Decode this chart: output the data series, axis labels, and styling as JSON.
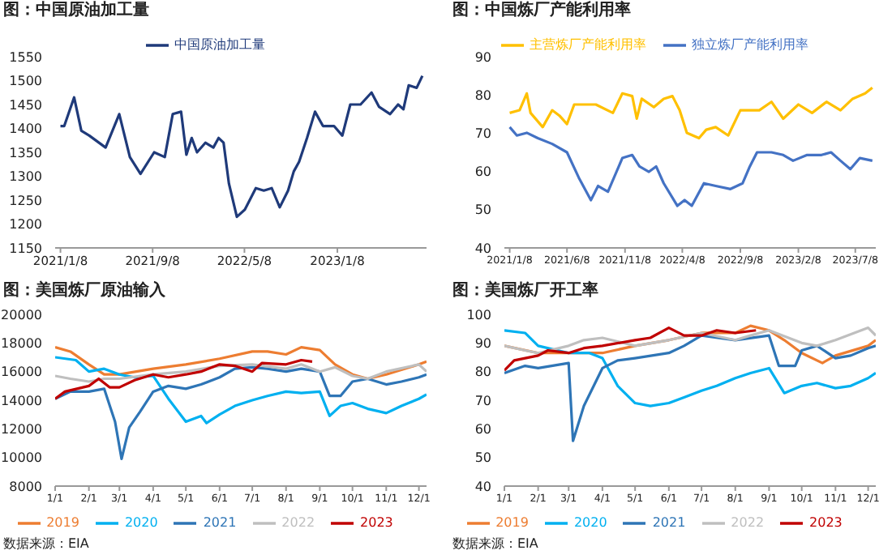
{
  "chart_data": [
    {
      "type": "line",
      "title": "图：中国原油加工量",
      "legend": "top",
      "marker": "none",
      "line_style": "solid",
      "xlim": [
        "2020-12-25",
        "2023-08-31"
      ],
      "xticks": [
        {
          "value": "2021-01-08",
          "label": "2021/1/8"
        },
        {
          "value": "2021-09-08",
          "label": "2021/9/8"
        },
        {
          "value": "2022-05-08",
          "label": "2022/5/8"
        },
        {
          "value": "2023-01-08",
          "label": "2023/1/8"
        }
      ],
      "ylim": [
        1150,
        1550
      ],
      "yticks": [
        1150,
        1200,
        1250,
        1300,
        1350,
        1400,
        1450,
        1500,
        1550
      ],
      "series": [
        {
          "name": "中国原油加工量",
          "color": "#1f3a7a",
          "x": [
            "2021-01-08",
            "2021-01-18",
            "2021-02-13",
            "2021-03-04",
            "2021-03-25",
            "2021-05-07",
            "2021-06-12",
            "2021-07-10",
            "2021-08-07",
            "2021-09-12",
            "2021-10-10",
            "2021-10-31",
            "2021-11-22",
            "2021-12-06",
            "2021-12-20",
            "2022-01-03",
            "2022-01-25",
            "2022-02-15",
            "2022-03-01",
            "2022-03-14",
            "2022-03-28",
            "2022-04-18",
            "2022-05-09",
            "2022-06-07",
            "2022-06-28",
            "2022-07-19",
            "2022-08-09",
            "2022-08-31",
            "2022-09-15",
            "2022-09-29",
            "2022-10-20",
            "2022-11-10",
            "2022-12-01",
            "2022-12-30",
            "2023-01-21",
            "2023-02-11",
            "2023-03-10",
            "2023-04-08",
            "2023-04-28",
            "2023-05-27",
            "2023-06-17",
            "2023-07-01",
            "2023-07-15",
            "2023-08-05",
            "2023-08-20"
          ],
          "values": [
            1405,
            1405,
            1465,
            1395,
            1385,
            1360,
            1430,
            1340,
            1305,
            1350,
            1340,
            1430,
            1435,
            1345,
            1380,
            1350,
            1370,
            1360,
            1380,
            1370,
            1285,
            1215,
            1230,
            1275,
            1270,
            1275,
            1235,
            1270,
            1310,
            1330,
            1380,
            1435,
            1405,
            1405,
            1385,
            1450,
            1450,
            1475,
            1445,
            1430,
            1450,
            1440,
            1490,
            1485,
            1510
          ]
        }
      ]
    },
    {
      "type": "line",
      "title": "图：中国炼厂产能利用率",
      "legend": "top",
      "marker": "none",
      "line_style": "solid",
      "xlim": [
        "2020-12-25",
        "2023-08-31"
      ],
      "xticks": [
        {
          "value": "2021-01-08",
          "label": "2021/1/8"
        },
        {
          "value": "2021-06-08",
          "label": "2021/6/8"
        },
        {
          "value": "2021-11-08",
          "label": "2021/11/8"
        },
        {
          "value": "2022-04-08",
          "label": "2022/4/8"
        },
        {
          "value": "2022-09-08",
          "label": "2022/9/8"
        },
        {
          "value": "2023-02-08",
          "label": "2023/2/8"
        },
        {
          "value": "2023-07-08",
          "label": "2023/7/8"
        }
      ],
      "ylim": [
        40,
        90
      ],
      "yticks": [
        40,
        50,
        60,
        70,
        80,
        90
      ],
      "series": [
        {
          "name": "主营炼厂产能利用率",
          "color": "#ffc000",
          "x": [
            "2021-01-08",
            "2021-02-03",
            "2021-02-22",
            "2021-03-04",
            "2021-04-05",
            "2021-04-30",
            "2021-05-19",
            "2021-06-08",
            "2021-06-27",
            "2021-07-22",
            "2021-08-23",
            "2021-10-07",
            "2021-11-01",
            "2021-11-27",
            "2021-12-09",
            "2021-12-22",
            "2022-01-23",
            "2022-02-18",
            "2022-03-13",
            "2022-04-01",
            "2022-04-20",
            "2022-05-22",
            "2022-06-10",
            "2022-07-05",
            "2022-08-07",
            "2022-09-08",
            "2022-10-28",
            "2022-11-29",
            "2022-12-30",
            "2023-02-08",
            "2023-03-16",
            "2023-04-23",
            "2023-05-30",
            "2023-07-01",
            "2023-08-03",
            "2023-08-22"
          ],
          "values": [
            75.3,
            76,
            80.4,
            75.3,
            71.6,
            76,
            74.6,
            72.4,
            77.5,
            77.5,
            77.5,
            75.3,
            80.4,
            79.7,
            73.8,
            79,
            76.8,
            79,
            79.7,
            76,
            70.1,
            68.7,
            70.9,
            71.6,
            69.4,
            76,
            76,
            78.2,
            73.8,
            77.5,
            75.3,
            78.2,
            76,
            79,
            80.4,
            81.9
          ]
        },
        {
          "name": "独立炼厂产能利用率",
          "color": "#4472c4",
          "x": [
            "2021-01-08",
            "2021-01-27",
            "2021-02-22",
            "2021-03-23",
            "2021-04-30",
            "2021-06-08",
            "2021-07-09",
            "2021-08-10",
            "2021-08-29",
            "2021-09-24",
            "2021-11-01",
            "2021-11-27",
            "2021-12-16",
            "2022-01-10",
            "2022-01-29",
            "2022-02-18",
            "2022-03-26",
            "2022-04-14",
            "2022-05-03",
            "2022-06-04",
            "2022-07-05",
            "2022-08-13",
            "2022-09-14",
            "2022-10-03",
            "2022-10-22",
            "2022-11-29",
            "2022-12-30",
            "2023-01-25",
            "2023-03-03",
            "2023-04-10",
            "2023-05-05",
            "2023-05-30",
            "2023-06-25",
            "2023-07-20",
            "2023-08-22"
          ],
          "values": [
            71.6,
            69.4,
            70.1,
            68.7,
            67.2,
            65,
            58.4,
            52.5,
            56.2,
            54.7,
            63.5,
            64.3,
            61.3,
            59.9,
            61.3,
            56.9,
            51,
            52.5,
            51,
            56.9,
            56.2,
            55.4,
            56.9,
            61.3,
            65,
            65,
            64.3,
            62.8,
            64.3,
            64.3,
            65,
            62.8,
            60.6,
            63.5,
            62.8
          ]
        }
      ]
    },
    {
      "type": "line",
      "title": "图：美国炼厂原油输入",
      "legend": "bottom",
      "marker": "none",
      "line_style": "solid",
      "annotations": [
        "数据来源：EIA"
      ],
      "xlim": [
        "--01-01",
        "--12-08"
      ],
      "xticks": [
        {
          "value": "--01-01",
          "label": "1/1"
        },
        {
          "value": "--02-01",
          "label": "2/1"
        },
        {
          "value": "--03-01",
          "label": "3/1"
        },
        {
          "value": "--04-01",
          "label": "4/1"
        },
        {
          "value": "--05-01",
          "label": "5/1"
        },
        {
          "value": "--06-01",
          "label": "6/1"
        },
        {
          "value": "--07-01",
          "label": "7/1"
        },
        {
          "value": "--08-01",
          "label": "8/1"
        },
        {
          "value": "--09-01",
          "label": "9/1"
        },
        {
          "value": "--10-01",
          "label": "10/1"
        },
        {
          "value": "--11-01",
          "label": "11/1"
        },
        {
          "value": "--12-01",
          "label": "12/1"
        }
      ],
      "ylim": [
        8000,
        20000
      ],
      "yticks": [
        8000,
        10000,
        12000,
        14000,
        16000,
        18000,
        20000
      ],
      "series": [
        {
          "name": "2019",
          "color": "#ed7d31",
          "x": [
            "--01-01",
            "--01-15",
            "--02-01",
            "--02-15",
            "--03-01",
            "--04-01",
            "--05-01",
            "--06-01",
            "--07-01",
            "--07-15",
            "--08-01",
            "--08-15",
            "--09-01",
            "--09-15",
            "--10-01",
            "--10-15",
            "--11-01",
            "--12-01",
            "--12-08"
          ],
          "values": [
            17700,
            17400,
            16500,
            15800,
            15800,
            16200,
            16500,
            16900,
            17400,
            17400,
            17200,
            17700,
            17500,
            16500,
            15800,
            15500,
            15800,
            16500,
            16700
          ]
        },
        {
          "name": "2020",
          "color": "#00b0f0",
          "x": [
            "--01-01",
            "--01-20",
            "--02-01",
            "--02-15",
            "--03-01",
            "--03-15",
            "--04-01",
            "--04-15",
            "--05-01",
            "--05-15",
            "--05-20",
            "--06-01",
            "--06-15",
            "--07-01",
            "--07-15",
            "--08-01",
            "--08-15",
            "--09-01",
            "--09-10",
            "--09-20",
            "--10-01",
            "--10-15",
            "--11-01",
            "--11-15",
            "--12-01",
            "--12-08"
          ],
          "values": [
            17000,
            16800,
            16000,
            16200,
            15800,
            15600,
            15700,
            14100,
            12500,
            12900,
            12400,
            13000,
            13600,
            14000,
            14300,
            14600,
            14500,
            14600,
            12900,
            13600,
            13800,
            13400,
            13100,
            13600,
            14100,
            14400
          ]
        },
        {
          "name": "2021",
          "color": "#2e75b6",
          "x": [
            "--01-01",
            "--01-15",
            "--02-01",
            "--02-15",
            "--02-25",
            "--03-03",
            "--03-10",
            "--03-20",
            "--04-01",
            "--04-15",
            "--05-01",
            "--05-15",
            "--06-01",
            "--06-15",
            "--07-01",
            "--07-15",
            "--08-01",
            "--08-15",
            "--09-01",
            "--09-10",
            "--09-20",
            "--10-01",
            "--10-15",
            "--11-01",
            "--11-15",
            "--12-01",
            "--12-08"
          ],
          "values": [
            14100,
            14600,
            14600,
            14800,
            12500,
            9900,
            12100,
            13200,
            14600,
            15000,
            14800,
            15100,
            15600,
            16200,
            16300,
            16200,
            16000,
            16200,
            16000,
            14300,
            14300,
            15300,
            15500,
            15100,
            15300,
            15600,
            15800
          ]
        },
        {
          "name": "2022",
          "color": "#bfbfbf",
          "x": [
            "--01-01",
            "--01-15",
            "--02-01",
            "--02-15",
            "--03-01",
            "--04-01",
            "--05-01",
            "--06-01",
            "--07-01",
            "--08-01",
            "--08-15",
            "--09-01",
            "--09-15",
            "--10-01",
            "--10-15",
            "--11-01",
            "--12-01",
            "--12-08"
          ],
          "values": [
            15700,
            15500,
            15300,
            15500,
            15500,
            15800,
            16000,
            16400,
            16500,
            16200,
            16500,
            16000,
            16300,
            15700,
            15500,
            16000,
            16500,
            16000
          ]
        },
        {
          "name": "2023",
          "color": "#c00000",
          "x": [
            "--01-01",
            "--01-10",
            "--02-01",
            "--02-10",
            "--02-20",
            "--03-01",
            "--03-15",
            "--04-01",
            "--04-15",
            "--05-01",
            "--05-15",
            "--06-01",
            "--06-15",
            "--07-01",
            "--07-10",
            "--08-01",
            "--08-15",
            "--08-25"
          ],
          "values": [
            14100,
            14600,
            15000,
            15500,
            14900,
            14900,
            15400,
            15800,
            15600,
            15800,
            16000,
            16500,
            16400,
            16000,
            16600,
            16500,
            16800,
            16700
          ]
        }
      ]
    },
    {
      "type": "line",
      "title": "图：美国炼厂开工率",
      "legend": "bottom",
      "marker": "none",
      "line_style": "solid",
      "annotations": [
        "数据来源：EIA"
      ],
      "xlim": [
        "--01-01",
        "--12-08"
      ],
      "xticks": [
        {
          "value": "--01-01",
          "label": "1/1"
        },
        {
          "value": "--02-01",
          "label": "2/1"
        },
        {
          "value": "--03-01",
          "label": "3/1"
        },
        {
          "value": "--04-01",
          "label": "4/1"
        },
        {
          "value": "--05-01",
          "label": "5/1"
        },
        {
          "value": "--06-01",
          "label": "6/1"
        },
        {
          "value": "--07-01",
          "label": "7/1"
        },
        {
          "value": "--08-01",
          "label": "8/1"
        },
        {
          "value": "--09-01",
          "label": "9/1"
        },
        {
          "value": "--10-01",
          "label": "10/1"
        },
        {
          "value": "--11-01",
          "label": "11/1"
        },
        {
          "value": "--12-01",
          "label": "12/1"
        }
      ],
      "ylim": [
        40,
        100
      ],
      "yticks": [
        40,
        50,
        60,
        70,
        80,
        90,
        100
      ],
      "series": [
        {
          "name": "2019",
          "color": "#ed7d31",
          "x": [
            "--01-01",
            "--02-01",
            "--03-01",
            "--04-01",
            "--05-01",
            "--06-01",
            "--07-01",
            "--08-01",
            "--08-15",
            "--09-01",
            "--09-15",
            "--10-01",
            "--10-20",
            "--11-01",
            "--12-01",
            "--12-08"
          ],
          "values": [
            89,
            86.5,
            86.5,
            86.5,
            89,
            91,
            93.5,
            93.5,
            96,
            94.4,
            91,
            86.5,
            83,
            85.6,
            89,
            91
          ]
        },
        {
          "name": "2020",
          "color": "#00b0f0",
          "x": [
            "--01-01",
            "--01-20",
            "--02-01",
            "--03-01",
            "--03-20",
            "--04-01",
            "--04-15",
            "--05-01",
            "--05-15",
            "--06-01",
            "--06-15",
            "--07-01",
            "--07-15",
            "--08-01",
            "--08-15",
            "--09-01",
            "--09-15",
            "--10-01",
            "--10-15",
            "--11-01",
            "--11-15",
            "--12-01",
            "--12-08"
          ],
          "values": [
            94.4,
            93.5,
            89,
            86.5,
            86.5,
            84.7,
            75,
            69,
            68,
            69,
            71,
            73.3,
            75,
            77.7,
            79.5,
            81.2,
            72.5,
            75,
            76,
            74.2,
            75,
            77.7,
            79.5
          ]
        },
        {
          "name": "2021",
          "color": "#2e75b6",
          "x": [
            "--01-01",
            "--01-20",
            "--02-01",
            "--03-01",
            "--03-05",
            "--03-15",
            "--04-01",
            "--04-15",
            "--05-01",
            "--06-01",
            "--06-15",
            "--07-01",
            "--08-01",
            "--09-01",
            "--09-10",
            "--09-25",
            "--10-01",
            "--10-15",
            "--11-01",
            "--11-15",
            "--12-01",
            "--12-08"
          ],
          "values": [
            79.5,
            82,
            81.2,
            83,
            55.8,
            68,
            81.2,
            83.9,
            84.7,
            86.5,
            89,
            92.6,
            91,
            92.6,
            82,
            82,
            87.4,
            89,
            84.7,
            85.6,
            88.2,
            89
          ]
        },
        {
          "name": "2022",
          "color": "#bfbfbf",
          "x": [
            "--01-01",
            "--01-20",
            "--02-01",
            "--03-01",
            "--03-15",
            "--04-01",
            "--05-01",
            "--06-01",
            "--07-01",
            "--08-01",
            "--08-15",
            "--09-01",
            "--10-01",
            "--10-15",
            "--11-01",
            "--12-01",
            "--12-08"
          ],
          "values": [
            89,
            87.4,
            86.5,
            89,
            91,
            91.8,
            89,
            91,
            93.5,
            91,
            92.6,
            94.4,
            90,
            89,
            91,
            95.3,
            92.6
          ]
        },
        {
          "name": "2023",
          "color": "#c00000",
          "x": [
            "--01-01",
            "--01-10",
            "--02-01",
            "--02-10",
            "--03-01",
            "--03-15",
            "--04-01",
            "--05-01",
            "--05-15",
            "--06-01",
            "--06-15",
            "--07-01",
            "--07-15",
            "--08-01",
            "--08-20"
          ],
          "values": [
            80.4,
            83.9,
            85.6,
            87.4,
            86.5,
            88.2,
            89,
            91,
            91.8,
            95.3,
            92.6,
            92.6,
            94.4,
            93.5,
            94.4
          ]
        }
      ]
    }
  ]
}
